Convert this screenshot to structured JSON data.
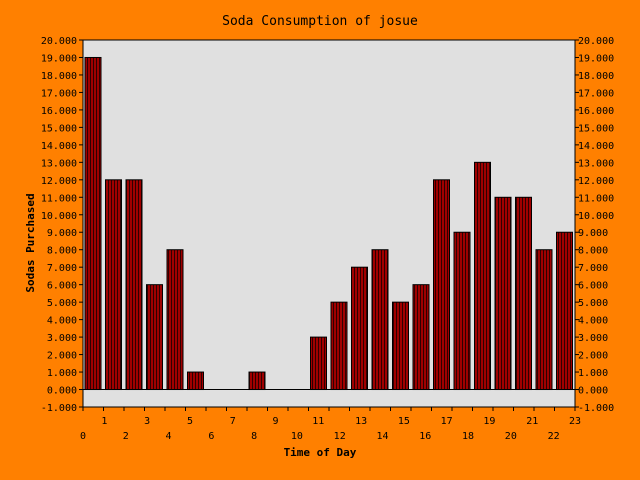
{
  "chart_data": {
    "type": "bar",
    "title": "Soda Consumption of josue",
    "xlabel": "Time of Day",
    "ylabel": "Sodas Purchased",
    "categories": [
      "0",
      "1",
      "2",
      "3",
      "4",
      "5",
      "6",
      "7",
      "8",
      "9",
      "10",
      "11",
      "12",
      "13",
      "14",
      "15",
      "16",
      "17",
      "18",
      "19",
      "20",
      "21",
      "22",
      "23"
    ],
    "x_tick_labels": [
      "0",
      "1",
      "2",
      "3",
      "4",
      "5",
      "6",
      "7",
      "8",
      "9",
      "10",
      "11",
      "12",
      "13",
      "14",
      "15",
      "16",
      "17",
      "18",
      "19",
      "20",
      "21",
      "22",
      "23"
    ],
    "values": [
      19,
      12,
      12,
      6,
      8,
      1,
      0,
      0,
      1,
      0,
      0,
      3,
      5,
      7,
      8,
      5,
      6,
      12,
      9,
      13,
      11,
      11,
      8,
      9
    ],
    "ylim": [
      -1,
      20
    ],
    "y_tick_labels": [
      "-1.000",
      "0.000",
      "1.000",
      "2.000",
      "3.000",
      "4.000",
      "5.000",
      "6.000",
      "7.000",
      "8.000",
      "9.000",
      "10.000",
      "11.000",
      "12.000",
      "13.000",
      "14.000",
      "15.000",
      "16.000",
      "17.000",
      "18.000",
      "19.000",
      "20.000"
    ],
    "grid": false,
    "colors": {
      "background": "#ff8000",
      "plot_area": "#e0e0e0",
      "bar_fill": "#a00000",
      "bar_stripe": "#300000",
      "axis": "#000000"
    }
  }
}
